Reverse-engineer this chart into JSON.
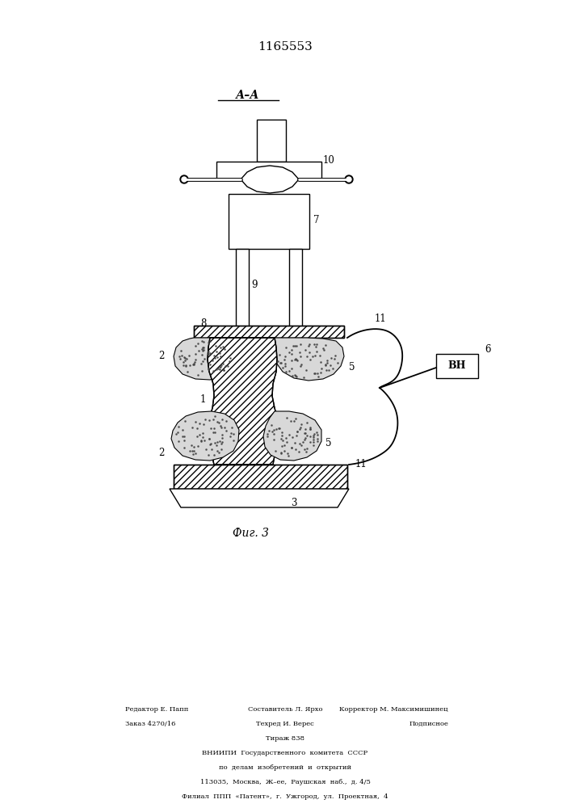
{
  "title": "1165553",
  "fig_label": "Фиг. 3",
  "section_label": "А–А",
  "bg_color": "#ffffff",
  "line_color": "#000000",
  "footer_col1_line1": "Редактор Е. Папп",
  "footer_col1_line2": "Заказ 4270/16",
  "footer_col2_line1": "Составитель Л. Ярхо",
  "footer_col2_line2": "Техред И. Верес",
  "footer_col2_line3": "Тираж 838",
  "footer_col3_line1": "Корректор М. Максимишинец",
  "footer_col3_line2": "Подписное",
  "footer_center1": "ВНИИПИ  Государственного  комитета  СССР",
  "footer_center2": "по  делам  изобретений  и  открытий",
  "footer_center3": "113035,  Москва,  Ж–ее,  Раушская  наб.,  д. 4/5",
  "footer_center4": "Филиал  ППП  «Патент»,  г.  Ужгород,  ул.  Проектная,  4"
}
